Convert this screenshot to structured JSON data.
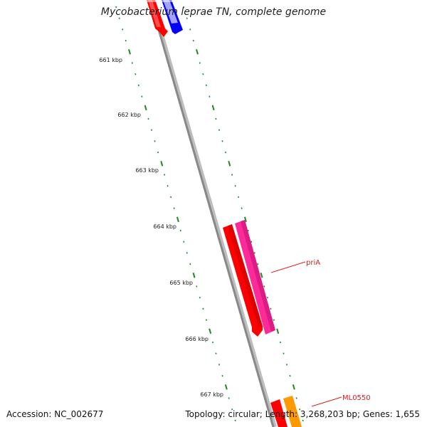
{
  "title": "Mycobacterium leprae TN, complete genome",
  "accession_text": "Accession: NC_002677",
  "info_text": "Topology: circular; Length: 3,268,203 bp; Genes: 1,655",
  "ticks": [
    {
      "label": "661 kbp"
    },
    {
      "label": "662 kbp"
    },
    {
      "label": "663 kbp"
    },
    {
      "label": "664 kbp"
    },
    {
      "label": "665 kbp"
    },
    {
      "label": "666 kbp"
    },
    {
      "label": "667 kbp"
    }
  ],
  "gene_labels": [
    {
      "name": "priA",
      "color": "#d81e1e"
    },
    {
      "name": "ML0550",
      "color": "#d81e1e"
    }
  ],
  "colors": {
    "backbone": "#888888",
    "tick": "#1f8a1f",
    "gene_red": "#ff0000",
    "gene_blue": "#0000ff",
    "gene_pink": "#ff2a9a",
    "gene_orange": "#ff9900"
  }
}
